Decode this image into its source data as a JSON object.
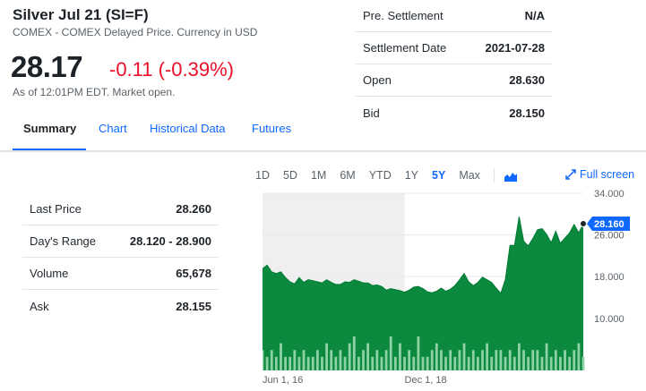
{
  "header": {
    "title": "Silver Jul 21 (SI=F)",
    "subtitle": "COMEX - COMEX Delayed Price. Currency in USD",
    "price": "28.17",
    "change": "-0.11 (-0.39%)",
    "as_of": "As of 12:01PM EDT. Market open."
  },
  "stats_right": [
    {
      "label": "Pre. Settlement",
      "value": "N/A"
    },
    {
      "label": "Settlement Date",
      "value": "2021-07-28"
    },
    {
      "label": "Open",
      "value": "28.630"
    },
    {
      "label": "Bid",
      "value": "28.150"
    }
  ],
  "tabs": [
    "Summary",
    "Chart",
    "Historical Data",
    "Futures"
  ],
  "stats_left": [
    {
      "label": "Last Price",
      "value": "28.260"
    },
    {
      "label": "Day's Range",
      "value": "28.120 - 28.900"
    },
    {
      "label": "Volume",
      "value": "65,678"
    },
    {
      "label": "Ask",
      "value": "28.155"
    }
  ],
  "chart_controls": {
    "ranges": [
      "1D",
      "5D",
      "1M",
      "6M",
      "YTD",
      "1Y",
      "5Y",
      "Max"
    ],
    "active_range": "5Y",
    "chart_type_icon": "mountain-chart-icon",
    "fullscreen_label": "Full screen",
    "fullscreen_icon": "expand-arrow-icon"
  },
  "colors": {
    "area_fill": "#0b8a3f",
    "area_line": "#007a33",
    "volume_bar": "#8fd1a6",
    "shade": "#efefef",
    "price_tag": "#0f69ff",
    "negative": "#eb0f29",
    "link": "#0f69ff"
  },
  "chart_data": {
    "type": "area",
    "y_ticks": [
      "34.000",
      "26.000",
      "18.000",
      "10.000"
    ],
    "y_tick_values": [
      34,
      26,
      18,
      10
    ],
    "ylim": [
      0,
      34
    ],
    "x_tick_labels": [
      {
        "label": "Jun 1, 16",
        "index": 0
      },
      {
        "label": "Dec 1, 18",
        "index": 31
      }
    ],
    "current_price_label": "28.160",
    "current_price": 28.16,
    "shaded_until_index": 31,
    "series": [
      {
        "values": [
          19.5,
          20.2,
          18.9,
          18.6,
          18.9,
          17.8,
          17.0,
          16.6,
          17.8,
          16.9,
          17.4,
          17.2,
          17.0,
          16.8,
          17.4,
          16.9,
          16.5,
          16.5,
          17.0,
          16.9,
          17.4,
          17.1,
          16.8,
          16.8,
          16.3,
          16.4,
          16.1,
          15.4,
          15.7,
          15.5,
          15.3,
          15.0,
          15.4,
          16.0,
          16.1,
          15.7,
          15.1,
          14.9,
          15.2,
          15.8,
          15.2,
          15.6,
          16.3,
          17.4,
          18.6,
          17.0,
          16.3,
          16.9,
          17.9,
          17.4,
          16.9,
          15.8,
          14.8,
          17.5,
          24.0,
          24.0,
          29.5,
          24.8,
          23.9,
          25.3,
          27.0,
          27.2,
          26.1,
          24.5,
          26.7,
          24.4,
          25.4,
          26.4,
          28.0,
          26.4,
          28.16
        ]
      }
    ],
    "volume": [
      3,
      2,
      3,
      2,
      4,
      2,
      2,
      3,
      2,
      3,
      2,
      2,
      3,
      2,
      4,
      3,
      2,
      3,
      2,
      4,
      5,
      2,
      3,
      4,
      2,
      3,
      2,
      3,
      5,
      2,
      4,
      2,
      3,
      2,
      5,
      2,
      2,
      3,
      4,
      3,
      2,
      3,
      2,
      3,
      4,
      2,
      3,
      2,
      3,
      4,
      2,
      3,
      3,
      2,
      3,
      2,
      4,
      3,
      2,
      3,
      3,
      2,
      4,
      2,
      3,
      2,
      3,
      2,
      3,
      4,
      2
    ]
  }
}
